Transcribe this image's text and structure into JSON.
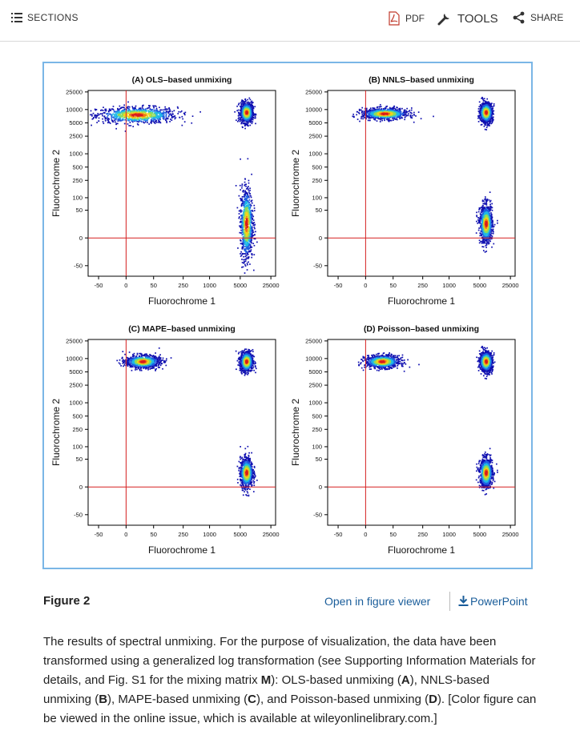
{
  "toolbar": {
    "sections_label": "SECTIONS",
    "pdf_label": "PDF",
    "tools_label": "TOOLS",
    "share_label": "SHARE"
  },
  "figure": {
    "label": "Figure 2",
    "open_viewer_label": "Open in figure viewer",
    "powerpoint_label": "PowerPoint",
    "caption_parts": [
      {
        "t": "The results of spectral unmixing. For the purpose of visualization, the data have been transformed using a generalized log transformation (see Supporting Information Materials for details, and Fig. S1 for the mixing matrix ",
        "b": false
      },
      {
        "t": "M",
        "b": true
      },
      {
        "t": "): OLS-based unmixing (",
        "b": false
      },
      {
        "t": "A",
        "b": true
      },
      {
        "t": "), NNLS-based unmixing (",
        "b": false
      },
      {
        "t": "B",
        "b": true
      },
      {
        "t": "), MAPE-based unmixing (",
        "b": false
      },
      {
        "t": "C",
        "b": true
      },
      {
        "t": "), and Poisson-based unmixing (",
        "b": false
      },
      {
        "t": "D",
        "b": true
      },
      {
        "t": "). [Color figure can be viewed in the online issue, which is available at wileyonlinelibrary.com.]",
        "b": false
      }
    ]
  },
  "chart_data": [
    {
      "type": "scatter",
      "title": "(A) OLS–based unmixing",
      "xlabel": "Fluorochrome 1",
      "ylabel": "Fluorochrome 2",
      "x_ticks": [
        "-50",
        "0",
        "50",
        "250",
        "1000",
        "5000",
        "25000"
      ],
      "y_ticks": [
        "-50",
        "0",
        "50",
        "100",
        "250",
        "500",
        "1000",
        "2500",
        "5000",
        "10000",
        "25000"
      ],
      "transform": "generalized log",
      "reference_lines": {
        "x": 0,
        "y": 0
      },
      "clusters": [
        {
          "x": [
            -40,
            300
          ],
          "y": [
            5000,
            12000
          ],
          "center": [
            15,
            7500
          ]
        },
        {
          "x": [
            5000,
            10000
          ],
          "y": [
            5000,
            15000
          ],
          "center": [
            7000,
            8500
          ]
        },
        {
          "x": [
            5000,
            10000
          ],
          "y": [
            -80,
            100
          ],
          "center": [
            7000,
            20
          ]
        }
      ]
    },
    {
      "type": "scatter",
      "title": "(B) NNLS–based unmixing",
      "xlabel": "Fluorochrome 1",
      "ylabel": "Fluorochrome 2",
      "x_ticks": [
        "-50",
        "0",
        "50",
        "250",
        "1000",
        "5000",
        "25000"
      ],
      "y_ticks": [
        "-50",
        "0",
        "50",
        "100",
        "250",
        "500",
        "1000",
        "2500",
        "5000",
        "10000",
        "25000"
      ],
      "transform": "generalized log",
      "reference_lines": {
        "x": 0,
        "y": 0
      },
      "clusters": [
        {
          "x": [
            0,
            150
          ],
          "y": [
            6000,
            11000
          ],
          "center": [
            30,
            8000
          ]
        },
        {
          "x": [
            5000,
            10000
          ],
          "y": [
            5000,
            15000
          ],
          "center": [
            7000,
            8500
          ]
        },
        {
          "x": [
            5000,
            10000
          ],
          "y": [
            0,
            100
          ],
          "center": [
            7000,
            20
          ]
        }
      ]
    },
    {
      "type": "scatter",
      "title": "(C) MAPE–based unmixing",
      "xlabel": "Fluorochrome 1",
      "ylabel": "Fluorochrome 2",
      "x_ticks": [
        "-50",
        "0",
        "50",
        "250",
        "1000",
        "5000",
        "25000"
      ],
      "y_ticks": [
        "-50",
        "0",
        "50",
        "100",
        "250",
        "500",
        "1000",
        "2500",
        "5000",
        "10000",
        "25000"
      ],
      "transform": "generalized log",
      "reference_lines": {
        "x": 0,
        "y": 0
      },
      "clusters": [
        {
          "x": [
            0,
            80
          ],
          "y": [
            6000,
            12000
          ],
          "center": [
            25,
            8500
          ]
        },
        {
          "x": [
            5000,
            10000
          ],
          "y": [
            5000,
            15000
          ],
          "center": [
            7000,
            8500
          ]
        },
        {
          "x": [
            5000,
            10000
          ],
          "y": [
            0,
            60
          ],
          "center": [
            7000,
            20
          ]
        }
      ]
    },
    {
      "type": "scatter",
      "title": "(D) Poisson–based unmixing",
      "xlabel": "Fluorochrome 1",
      "ylabel": "Fluorochrome 2",
      "x_ticks": [
        "-50",
        "0",
        "50",
        "250",
        "1000",
        "5000",
        "25000"
      ],
      "y_ticks": [
        "-50",
        "0",
        "50",
        "100",
        "250",
        "500",
        "1000",
        "2500",
        "5000",
        "10000",
        "25000"
      ],
      "transform": "generalized log",
      "reference_lines": {
        "x": 0,
        "y": 0
      },
      "clusters": [
        {
          "x": [
            0,
            80
          ],
          "y": [
            6000,
            12000
          ],
          "center": [
            25,
            8500
          ]
        },
        {
          "x": [
            5000,
            10000
          ],
          "y": [
            5000,
            15000
          ],
          "center": [
            7000,
            8500
          ]
        },
        {
          "x": [
            5000,
            10000
          ],
          "y": [
            0,
            60
          ],
          "center": [
            7000,
            20
          ]
        }
      ]
    }
  ],
  "colors": {
    "link": "#1a5d9a",
    "frame": "#7ab6e6",
    "reference_line": "#d62020"
  }
}
